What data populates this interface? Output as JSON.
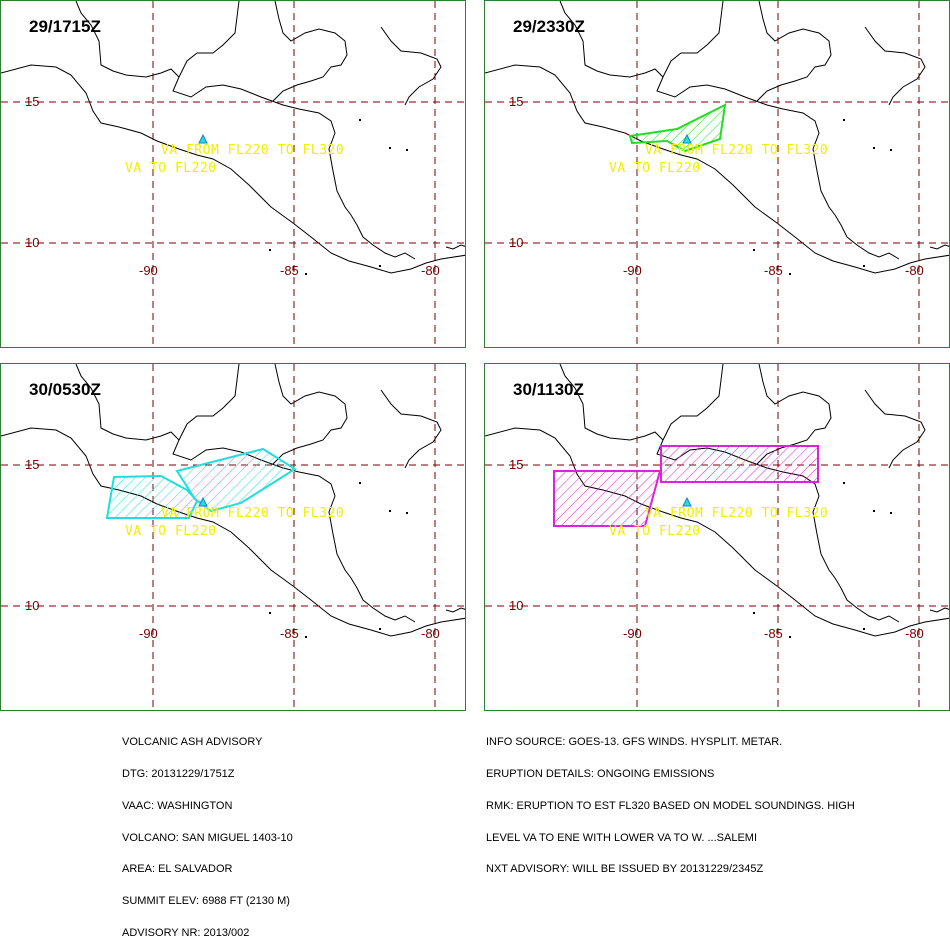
{
  "panels": [
    {
      "title": "29/1715Z",
      "ash": []
    },
    {
      "title": "29/2330Z",
      "ash": [
        {
          "color": "#22dd22",
          "shape": "wedge"
        }
      ]
    },
    {
      "title": "30/0530Z",
      "ash": [
        {
          "color": "#22dddd",
          "shape": "west"
        },
        {
          "color": "#22dddd",
          "shape": "east"
        }
      ]
    },
    {
      "title": "30/1130Z",
      "ash": [
        {
          "color": "#dd22dd",
          "shape": "west-box"
        },
        {
          "color": "#dd22dd",
          "shape": "east-box"
        }
      ]
    }
  ],
  "map": {
    "lat_labels": [
      "15",
      "10"
    ],
    "lon_labels": [
      "-90",
      "-85",
      "-80"
    ],
    "va_line1": "VA FROM FL220 TO FL320",
    "va_line2": "VA TO FL220",
    "colors": {
      "grid": "#7a0000",
      "coast": "#000000",
      "va_text": "#f2ee00",
      "frame": "#2e7d32"
    }
  },
  "footer": {
    "left": [
      "VOLCANIC ASH ADVISORY",
      "DTG: 20131229/1751Z",
      "VAAC: WASHINGTON",
      "VOLCANO: SAN MIGUEL 1403-10",
      "AREA: EL SALVADOR",
      "SUMMIT ELEV: 6988 FT (2130 M)",
      "ADVISORY NR: 2013/002"
    ],
    "right": [
      "INFO SOURCE: GOES-13. GFS WINDS. HYSPLIT. METAR.",
      "ERUPTION DETAILS: ONGOING EMISSIONS",
      "RMK: ERUPTION TO EST FL320 BASED ON MODEL SOUNDINGS. HIGH",
      "LEVEL VA TO ENE WITH LOWER VA TO W. ...SALEMI",
      "NXT ADVISORY: WILL BE ISSUED BY 20131229/2345Z"
    ]
  }
}
